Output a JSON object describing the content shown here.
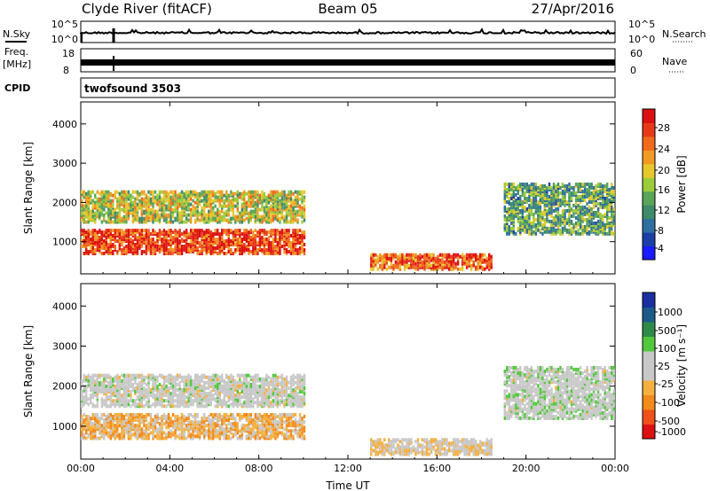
{
  "header": {
    "station": "Clyde River (fitACF)",
    "beam": "Beam 05",
    "date": "27/Apr/2016"
  },
  "strips": {
    "nsky_label": "N.Sky",
    "nsky_top": "10^5",
    "nsky_bottom": "10^0",
    "nsearch_label": "N.Search",
    "nsearch_top": "10^5",
    "nsearch_bottom": "10^0",
    "freq_label_line1": "Freq.",
    "freq_label_line2": "[MHz]",
    "freq_top": "18",
    "freq_bottom": "8",
    "nave_label": "Nave",
    "nave_top": "60",
    "nave_bottom": "0",
    "cpid_label": "CPID",
    "cpid_value": "twofsound 3503"
  },
  "chart_data": [
    {
      "type": "heatmap",
      "panel": "power",
      "ylabel": "Slant Range [km]",
      "xlabel": "Time UT",
      "x_ticks": [
        "00:00",
        "04:00",
        "08:00",
        "12:00",
        "16:00",
        "20:00",
        "00:00"
      ],
      "x_range_hours": [
        0,
        24
      ],
      "y_ticks": [
        1000,
        2000,
        3000,
        4000
      ],
      "ylim": [
        180,
        4560
      ],
      "colorbar": {
        "label": "Power [dB]",
        "ticks": [
          "28",
          "24",
          "20",
          "16",
          "12",
          "8",
          "4"
        ],
        "range": [
          0,
          30
        ],
        "colors": [
          "#1a1aff",
          "#1c3fa6",
          "#2f6fa0",
          "#3f8a6a",
          "#5aa55a",
          "#9ccc3a",
          "#e6c82c",
          "#f09a24",
          "#f06a1c",
          "#e8381a",
          "#dd1111"
        ]
      },
      "features": [
        {
          "name": "main band",
          "start_h": 0,
          "end_h": 10,
          "range_km": [
            700,
            1300
          ],
          "power_db": 26
        },
        {
          "name": "upper band",
          "start_h": 0,
          "end_h": 10,
          "range_km": [
            1500,
            2300
          ],
          "power_db": 16
        },
        {
          "name": "low patch",
          "start_h": 13,
          "end_h": 18.5,
          "range_km": [
            300,
            700
          ],
          "power_db": 24
        },
        {
          "name": "evening band",
          "start_h": 19,
          "end_h": 24,
          "range_km": [
            1200,
            2500
          ],
          "power_db": 12
        }
      ]
    },
    {
      "type": "heatmap",
      "panel": "velocity",
      "ylabel": "Slant Range [km]",
      "xlabel": "Time UT",
      "x_ticks": [
        "00:00",
        "04:00",
        "08:00",
        "12:00",
        "16:00",
        "20:00",
        "00:00"
      ],
      "x_range_hours": [
        0,
        24
      ],
      "y_ticks": [
        1000,
        2000,
        3000,
        4000
      ],
      "ylim": [
        180,
        4560
      ],
      "colorbar": {
        "label": "Velocity [m s⁻¹]",
        "ticks": [
          "1000",
          "500",
          "100",
          "25",
          "-25",
          "-100",
          "-500",
          "-1000"
        ],
        "range": [
          -1000,
          1000
        ],
        "colors": [
          "#dd1111",
          "#f0501a",
          "#f28a1c",
          "#f5b040",
          "#c8c8c8",
          "#c8c8c8",
          "#52c83c",
          "#2f8a4a",
          "#1c5a8a",
          "#1a2fa0"
        ]
      },
      "features": [
        {
          "name": "main band",
          "start_h": 0,
          "end_h": 10,
          "range_km": [
            700,
            1300
          ],
          "velocity_ms": -300
        },
        {
          "name": "upper band",
          "start_h": 0,
          "end_h": 10,
          "range_km": [
            1500,
            2300
          ],
          "velocity_ms": 0
        },
        {
          "name": "low patch",
          "start_h": 13,
          "end_h": 18.5,
          "range_km": [
            300,
            700
          ],
          "velocity_ms": -150
        },
        {
          "name": "evening band",
          "start_h": 19,
          "end_h": 24,
          "range_km": [
            1200,
            2500
          ],
          "velocity_ms": 40
        }
      ]
    }
  ]
}
